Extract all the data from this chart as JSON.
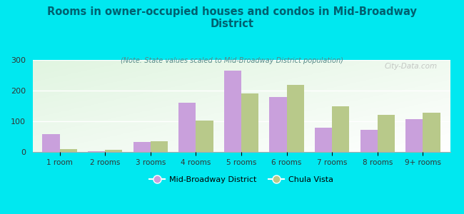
{
  "title": "Rooms in owner-occupied houses and condos in Mid-Broadway\nDistrict",
  "subtitle": "(Note: State values scaled to Mid-Broadway District population)",
  "categories": [
    "1 room",
    "2 rooms",
    "3 rooms",
    "4 rooms",
    "5 rooms",
    "6 rooms",
    "7 rooms",
    "8 rooms",
    "9+ rooms"
  ],
  "mid_broadway": [
    57,
    3,
    32,
    160,
    265,
    180,
    78,
    72,
    107
  ],
  "chula_vista": [
    10,
    6,
    35,
    102,
    190,
    218,
    148,
    122,
    128
  ],
  "bar_color_mid": "#c9a0dc",
  "bar_color_chula": "#b8c98a",
  "background_outer": "#00e8f0",
  "ylim": [
    0,
    300
  ],
  "yticks": [
    0,
    100,
    200,
    300
  ],
  "title_color": "#006070",
  "subtitle_color": "#558888",
  "legend_label_mid": "Mid-Broadway District",
  "legend_label_chula": "Chula Vista",
  "watermark": "City-Data.com"
}
